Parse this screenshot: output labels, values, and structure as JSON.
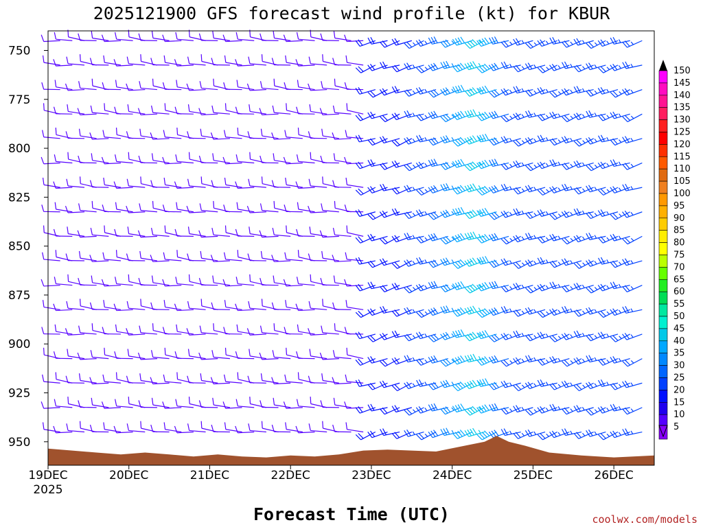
{
  "chart_data": {
    "type": "wind_barb_time_height",
    "title": "2025121900 GFS forecast wind profile (kt) for KBUR",
    "xlabel": "Forecast Time (UTC)",
    "credit": "coolwx.com/models",
    "x_ticks": [
      "19DEC",
      "20DEC",
      "21DEC",
      "22DEC",
      "23DEC",
      "24DEC",
      "25DEC",
      "26DEC"
    ],
    "x_year": "2025",
    "x_range_days": [
      0,
      7.5
    ],
    "y_ticks": [
      750,
      775,
      800,
      825,
      850,
      875,
      900,
      925,
      950
    ],
    "y_range_hpa": [
      740,
      962
    ],
    "colorbar": {
      "labels": [
        150,
        145,
        140,
        135,
        130,
        125,
        120,
        115,
        110,
        105,
        100,
        95,
        90,
        85,
        80,
        75,
        70,
        65,
        60,
        55,
        50,
        45,
        40,
        35,
        30,
        25,
        20,
        15,
        10,
        5
      ],
      "colors": [
        "#ff00ff",
        "#ff0cc0",
        "#ff1493",
        "#ff1e60",
        "#ff2020",
        "#ff0000",
        "#ff3000",
        "#ff5a00",
        "#e06a10",
        "#f08020",
        "#ff9900",
        "#ffb000",
        "#ffcc00",
        "#ffee00",
        "#ffff00",
        "#bbff00",
        "#66ff00",
        "#22ee22",
        "#00dd55",
        "#00e8a0",
        "#00f0d0",
        "#00c8e8",
        "#00a8ff",
        "#0088ff",
        "#0066ff",
        "#0040ff",
        "#0010ff",
        "#2000ee",
        "#5500ff",
        "#8800ff"
      ]
    },
    "columns": [
      {
        "day": 0.15,
        "dir": 275,
        "spd": 10
      },
      {
        "day": 0.3,
        "dir": 275,
        "spd": 10
      },
      {
        "day": 0.45,
        "dir": 275,
        "spd": 10
      },
      {
        "day": 0.6,
        "dir": 275,
        "spd": 10
      },
      {
        "day": 0.75,
        "dir": 275,
        "spd": 10
      },
      {
        "day": 0.9,
        "dir": 275,
        "spd": 10
      },
      {
        "day": 1.05,
        "dir": 275,
        "spd": 10
      },
      {
        "day": 1.2,
        "dir": 275,
        "spd": 10
      },
      {
        "day": 1.35,
        "dir": 275,
        "spd": 10
      },
      {
        "day": 1.5,
        "dir": 275,
        "spd": 10
      },
      {
        "day": 1.65,
        "dir": 275,
        "spd": 10
      },
      {
        "day": 1.8,
        "dir": 275,
        "spd": 10
      },
      {
        "day": 1.95,
        "dir": 275,
        "spd": 10
      },
      {
        "day": 2.1,
        "dir": 275,
        "spd": 10
      },
      {
        "day": 2.25,
        "dir": 275,
        "spd": 10
      },
      {
        "day": 2.4,
        "dir": 275,
        "spd": 10
      },
      {
        "day": 2.55,
        "dir": 275,
        "spd": 10
      },
      {
        "day": 2.7,
        "dir": 275,
        "spd": 10
      },
      {
        "day": 2.85,
        "dir": 275,
        "spd": 10
      },
      {
        "day": 3.0,
        "dir": 275,
        "spd": 10
      },
      {
        "day": 3.15,
        "dir": 275,
        "spd": 10
      },
      {
        "day": 3.3,
        "dir": 275,
        "spd": 10
      },
      {
        "day": 3.45,
        "dir": 275,
        "spd": 10
      },
      {
        "day": 3.6,
        "dir": 275,
        "spd": 10
      },
      {
        "day": 3.75,
        "dir": 275,
        "spd": 10
      },
      {
        "day": 3.9,
        "dir": 275,
        "spd": 10
      },
      {
        "day": 4.05,
        "dir": 250,
        "spd": 20
      },
      {
        "day": 4.2,
        "dir": 250,
        "spd": 20
      },
      {
        "day": 4.35,
        "dir": 250,
        "spd": 20
      },
      {
        "day": 4.5,
        "dir": 250,
        "spd": 20
      },
      {
        "day": 4.65,
        "dir": 250,
        "spd": 25
      },
      {
        "day": 4.8,
        "dir": 250,
        "spd": 25
      },
      {
        "day": 4.95,
        "dir": 250,
        "spd": 30
      },
      {
        "day": 5.1,
        "dir": 250,
        "spd": 35
      },
      {
        "day": 5.25,
        "dir": 250,
        "spd": 40
      },
      {
        "day": 5.4,
        "dir": 250,
        "spd": 45
      },
      {
        "day": 5.55,
        "dir": 250,
        "spd": 40
      },
      {
        "day": 5.7,
        "dir": 250,
        "spd": 30
      },
      {
        "day": 5.85,
        "dir": 250,
        "spd": 25
      },
      {
        "day": 6.0,
        "dir": 250,
        "spd": 25
      },
      {
        "day": 6.15,
        "dir": 250,
        "spd": 25
      },
      {
        "day": 6.3,
        "dir": 250,
        "spd": 25
      },
      {
        "day": 6.45,
        "dir": 250,
        "spd": 25
      },
      {
        "day": 6.6,
        "dir": 250,
        "spd": 25
      },
      {
        "day": 6.75,
        "dir": 250,
        "spd": 25
      },
      {
        "day": 6.9,
        "dir": 250,
        "spd": 25
      },
      {
        "day": 7.05,
        "dir": 250,
        "spd": 25
      },
      {
        "day": 7.2,
        "dir": 250,
        "spd": 25
      },
      {
        "day": 7.35,
        "dir": 250,
        "spd": 25
      }
    ],
    "terrain_hpa": [
      {
        "day": 0.0,
        "p": 953.5
      },
      {
        "day": 0.3,
        "p": 954.5
      },
      {
        "day": 0.6,
        "p": 955.5
      },
      {
        "day": 0.9,
        "p": 956.5
      },
      {
        "day": 1.2,
        "p": 955.5
      },
      {
        "day": 1.5,
        "p": 956.5
      },
      {
        "day": 1.8,
        "p": 957.5
      },
      {
        "day": 2.1,
        "p": 956.5
      },
      {
        "day": 2.4,
        "p": 957.5
      },
      {
        "day": 2.7,
        "p": 958
      },
      {
        "day": 3.0,
        "p": 957
      },
      {
        "day": 3.3,
        "p": 957.5
      },
      {
        "day": 3.6,
        "p": 956.5
      },
      {
        "day": 3.9,
        "p": 954.5
      },
      {
        "day": 4.2,
        "p": 954
      },
      {
        "day": 4.5,
        "p": 954.5
      },
      {
        "day": 4.8,
        "p": 955
      },
      {
        "day": 5.1,
        "p": 952.5
      },
      {
        "day": 5.4,
        "p": 950
      },
      {
        "day": 5.55,
        "p": 947
      },
      {
        "day": 5.7,
        "p": 950
      },
      {
        "day": 5.9,
        "p": 952
      },
      {
        "day": 6.2,
        "p": 955.5
      },
      {
        "day": 6.6,
        "p": 957
      },
      {
        "day": 7.0,
        "p": 958
      },
      {
        "day": 7.5,
        "p": 957
      }
    ]
  }
}
